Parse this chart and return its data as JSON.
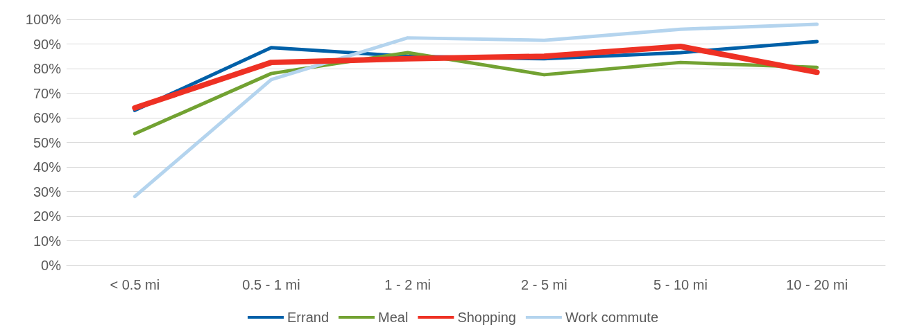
{
  "chart_data": {
    "type": "line",
    "categories": [
      "< 0.5 mi",
      "0.5 - 1 mi",
      "1 - 2 mi",
      "2 - 5 mi",
      "5 - 10 mi",
      "10 - 20 mi"
    ],
    "series": [
      {
        "name": "Errand",
        "color": "#0060a8",
        "values": [
          63,
          88.5,
          85,
          84,
          86.5,
          91
        ]
      },
      {
        "name": "Meal",
        "color": "#72a232",
        "values": [
          53.5,
          78,
          86.5,
          77.5,
          82.5,
          80.5
        ]
      },
      {
        "name": "Shopping",
        "color": "#ee3124",
        "values": [
          64,
          82.5,
          84,
          85,
          89,
          78.5
        ]
      },
      {
        "name": "Work commute",
        "color": "#b4d4ee",
        "values": [
          28,
          75.5,
          92.5,
          91.5,
          96,
          98
        ]
      }
    ],
    "ylim": [
      0,
      100
    ],
    "yticks": [
      {
        "value": 0,
        "label": "0%"
      },
      {
        "value": 10,
        "label": "10%"
      },
      {
        "value": 20,
        "label": "20%"
      },
      {
        "value": 30,
        "label": "30%"
      },
      {
        "value": 40,
        "label": "40%"
      },
      {
        "value": 50,
        "label": "50%"
      },
      {
        "value": 60,
        "label": "60%"
      },
      {
        "value": 70,
        "label": "70%"
      },
      {
        "value": 80,
        "label": "80%"
      },
      {
        "value": 90,
        "label": "90%"
      },
      {
        "value": 100,
        "label": "100%"
      }
    ],
    "grid": "y",
    "legend": "bottom",
    "marker": "none",
    "line_style": "solid"
  }
}
